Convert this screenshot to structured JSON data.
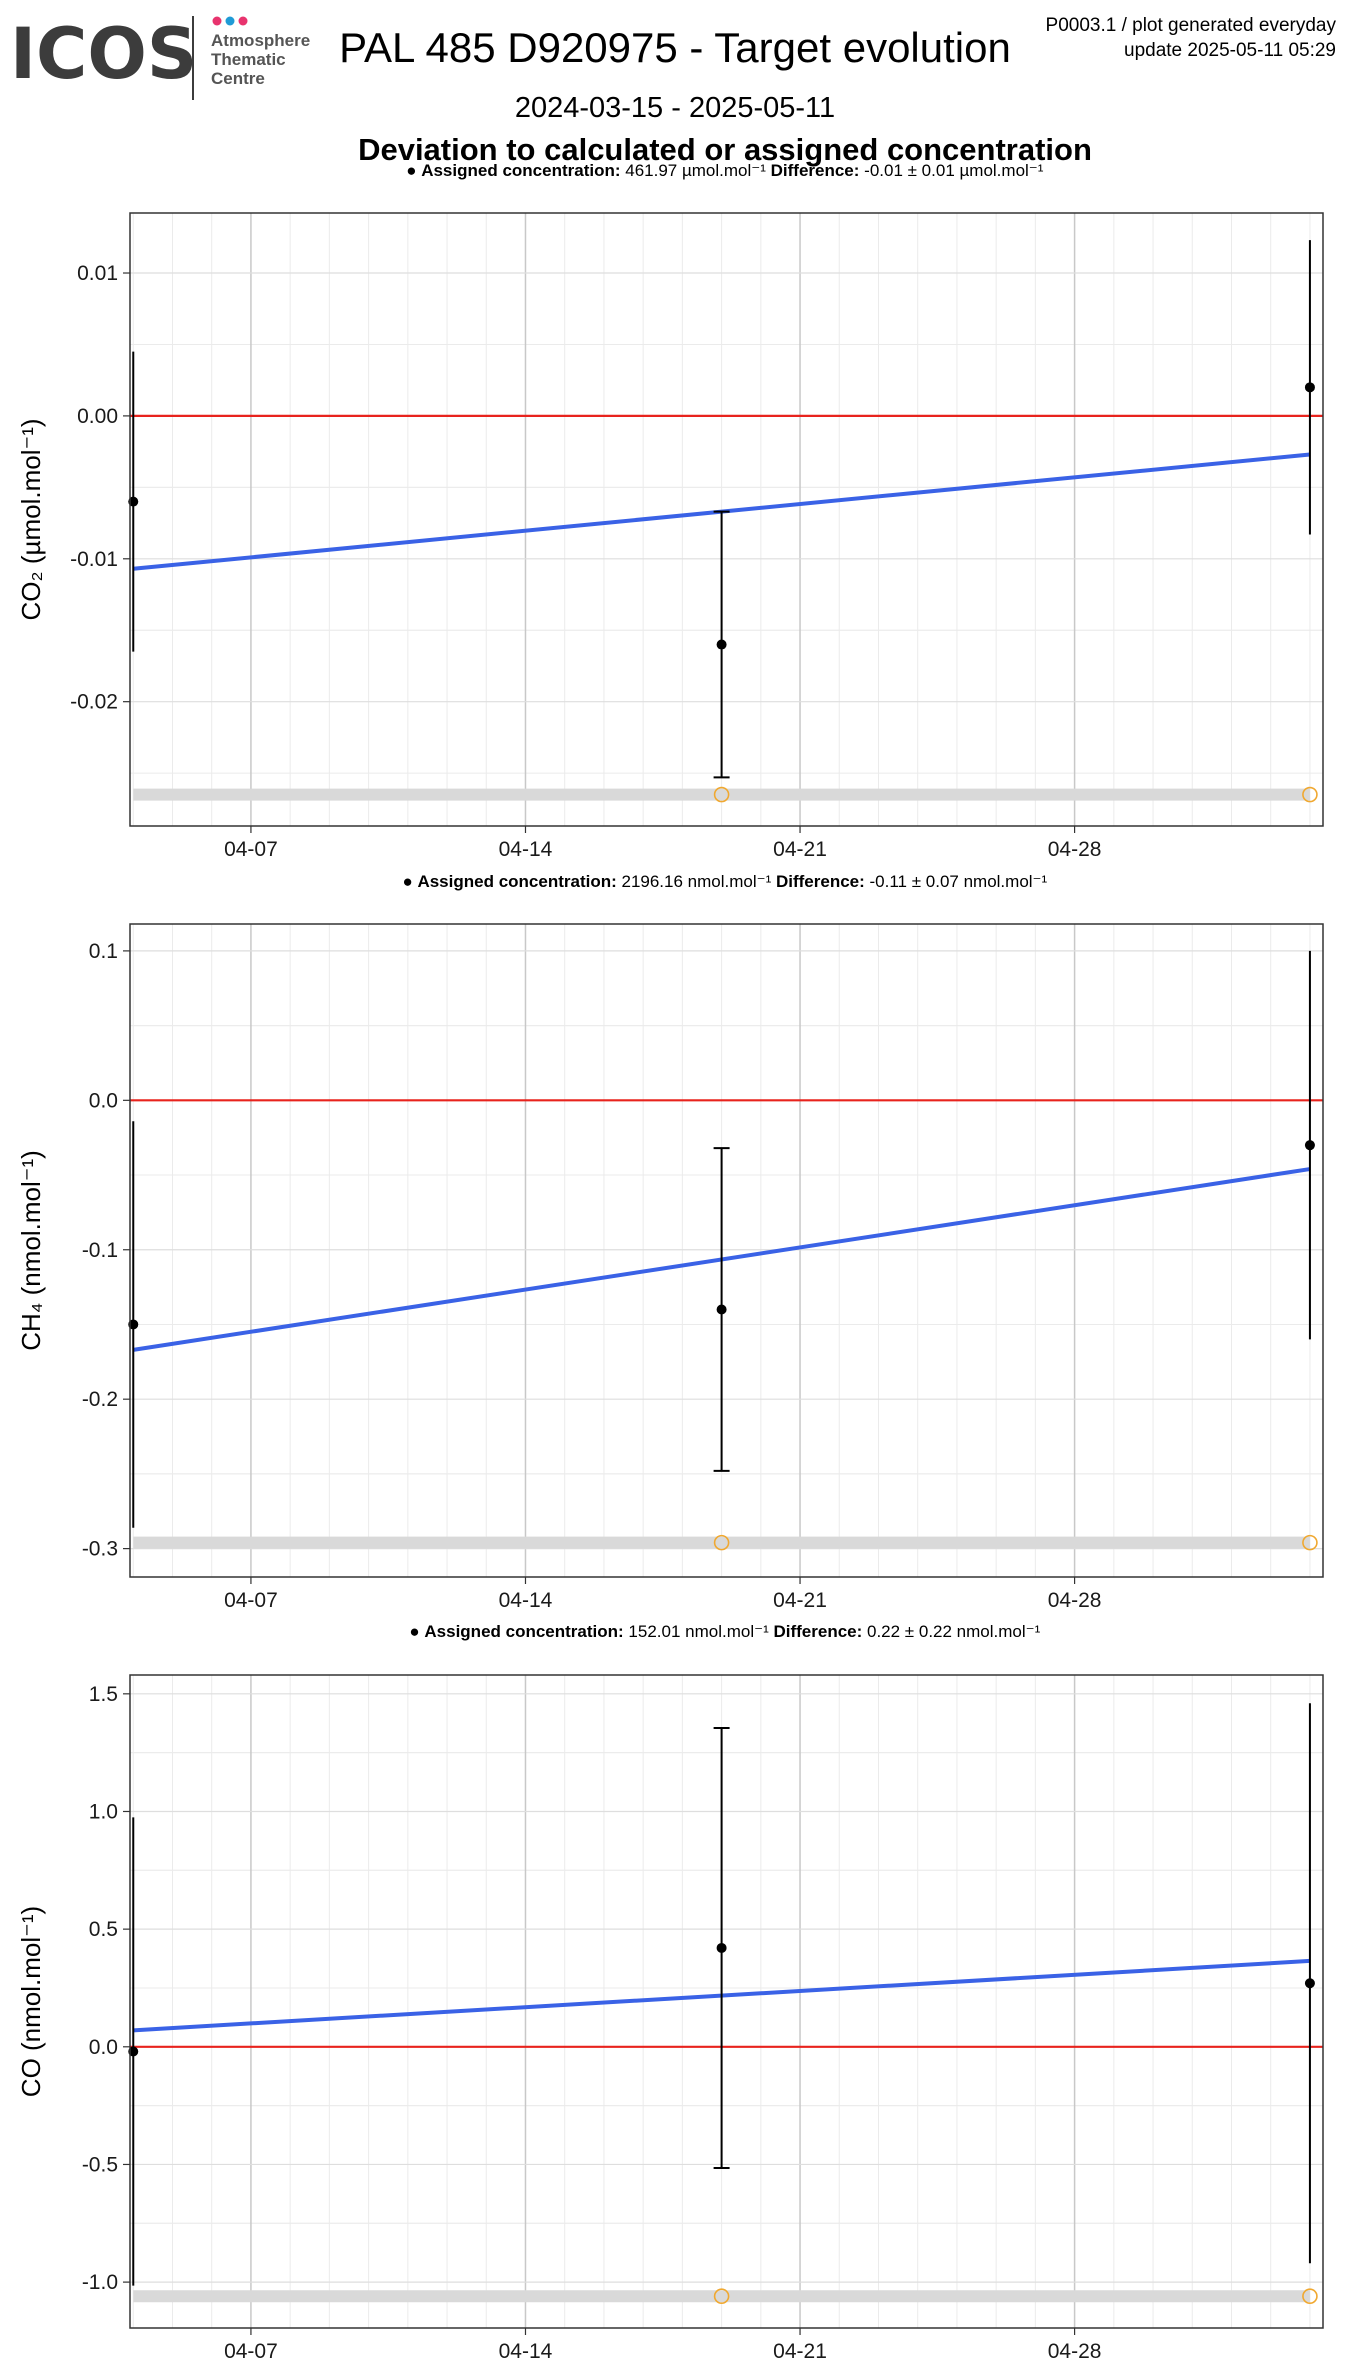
{
  "header": {
    "logo_text": "ICOS",
    "logo_sub": [
      "Atmosphere",
      "Thematic",
      "Centre"
    ],
    "logo_dot_colors": [
      "#e8336e",
      "#1f9bd6",
      "#e8336e"
    ],
    "title": "PAL 485 D920975 - Target evolution",
    "date_range": "2024-03-15 - 2025-05-11",
    "product_line": "P0003.1 / plot generated everyday",
    "update_line": "update  2025-05-11 05:29",
    "main_title": "Deviation to calculated or assigned concentration"
  },
  "colors": {
    "zero_line": "#e8231d",
    "trend_line": "#3a62e6",
    "points": "#000000",
    "flag_marker": "#f0a830",
    "flag_band": "#d9d9d9"
  },
  "chart_data": [
    {
      "type": "scatter",
      "gas": "CO2",
      "ylabel": "CO₂ (µmol.mol⁻¹)",
      "legend": {
        "assigned_label": "Assigned concentration:",
        "assigned_value": "461.97 µmol.mol⁻¹",
        "difference_label": "Difference:",
        "difference_value": "-0.01 ± 0.01 µmol.mol⁻¹"
      },
      "x": [
        "2024-04-04",
        "2024-04-19",
        "2024-05-04"
      ],
      "y": [
        -0.006,
        -0.016,
        0.002
      ],
      "y_error": [
        0.0105,
        0.0093,
        0.0103
      ],
      "trend": [
        -0.0107,
        -0.0027
      ],
      "flag_level": -0.0265,
      "flag_points": [
        "2024-04-19",
        "2024-05-04"
      ],
      "xlim": [
        "2024-04-03 22:00",
        "2024-05-04 08:00"
      ],
      "ylim": [
        -0.0287,
        0.0142
      ],
      "y_ticks": [
        0.01,
        0.0,
        -0.01,
        -0.02
      ],
      "y_tick_labels": [
        "0.01",
        "0.00",
        "-0.01",
        "-0.02"
      ],
      "x_ticks": [
        "2024-04-07",
        "2024-04-14",
        "2024-04-21",
        "2024-04-28"
      ],
      "x_tick_labels": [
        "04-07",
        "04-14",
        "04-21",
        "04-28"
      ],
      "grid": true
    },
    {
      "type": "scatter",
      "gas": "CH4",
      "ylabel": "CH₄ (nmol.mol⁻¹)",
      "legend": {
        "assigned_label": "Assigned concentration:",
        "assigned_value": "2196.16 nmol.mol⁻¹",
        "difference_label": "Difference:",
        "difference_value": "-0.11 ± 0.07 nmol.mol⁻¹"
      },
      "x": [
        "2024-04-04",
        "2024-04-19",
        "2024-05-04"
      ],
      "y": [
        -0.15,
        -0.14,
        -0.03
      ],
      "y_error": [
        0.136,
        0.108,
        0.13
      ],
      "trend": [
        -0.167,
        -0.046
      ],
      "flag_level": -0.296,
      "flag_points": [
        "2024-04-19",
        "2024-05-04"
      ],
      "xlim": [
        "2024-04-03 22:00",
        "2024-05-04 08:00"
      ],
      "ylim": [
        -0.319,
        0.118
      ],
      "y_ticks": [
        0.1,
        0.0,
        -0.1,
        -0.2,
        -0.3
      ],
      "y_tick_labels": [
        "0.1",
        "0.0",
        "-0.1",
        "-0.2",
        "-0.3"
      ],
      "x_ticks": [
        "2024-04-07",
        "2024-04-14",
        "2024-04-21",
        "2024-04-28"
      ],
      "x_tick_labels": [
        "04-07",
        "04-14",
        "04-21",
        "04-28"
      ],
      "grid": true
    },
    {
      "type": "scatter",
      "gas": "CO",
      "ylabel": "CO (nmol.mol⁻¹)",
      "legend": {
        "assigned_label": "Assigned concentration:",
        "assigned_value": "152.01 nmol.mol⁻¹",
        "difference_label": "Difference:",
        "difference_value": "0.22 ± 0.22 nmol.mol⁻¹"
      },
      "x": [
        "2024-04-04",
        "2024-04-19",
        "2024-05-04"
      ],
      "y": [
        -0.02,
        0.42,
        0.27
      ],
      "y_error": [
        0.995,
        0.935,
        1.19
      ],
      "trend": [
        0.07,
        0.365
      ],
      "flag_level": -1.06,
      "flag_points": [
        "2024-04-19",
        "2024-05-04"
      ],
      "xlim": [
        "2024-04-03 22:00",
        "2024-05-04 08:00"
      ],
      "ylim": [
        -1.195,
        1.58
      ],
      "y_ticks": [
        1.5,
        1.0,
        0.5,
        0.0,
        -0.5,
        -1.0
      ],
      "y_tick_labels": [
        "1.5",
        "1.0",
        "0.5",
        "0.0",
        "-0.5",
        "-1.0"
      ],
      "x_ticks": [
        "2024-04-07",
        "2024-04-14",
        "2024-04-21",
        "2024-04-28"
      ],
      "x_tick_labels": [
        "04-07",
        "04-14",
        "04-21",
        "04-28"
      ],
      "grid": true
    }
  ]
}
